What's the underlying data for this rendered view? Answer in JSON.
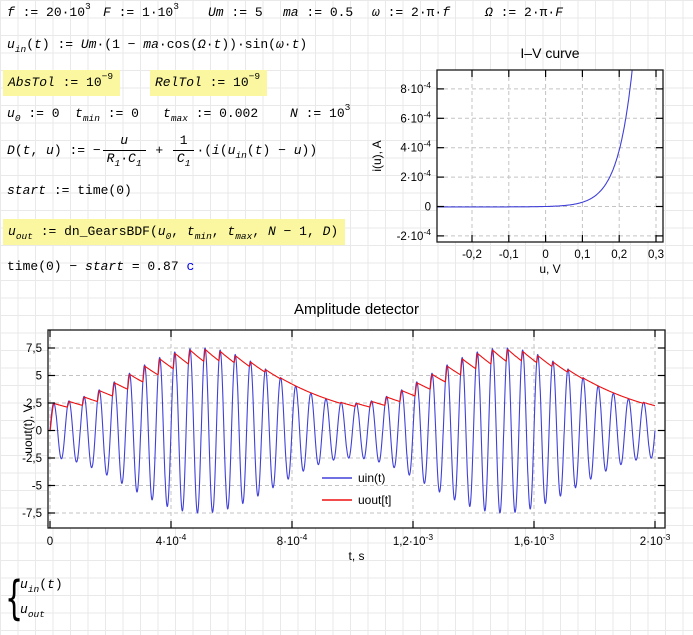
{
  "worksheet": {
    "highlight_color": "#faf7a0",
    "unit_color": "#0000e8",
    "formulas": {
      "def_f": [
        {
          "k": "v",
          "t": "f"
        },
        {
          "k": "r",
          "t": " := 20·10"
        },
        {
          "k": "p",
          "t": "3"
        }
      ],
      "def_F": [
        {
          "k": "v",
          "t": "F"
        },
        {
          "k": "r",
          "t": " := 1·10"
        },
        {
          "k": "p",
          "t": "3"
        }
      ],
      "def_Um": [
        {
          "k": "v",
          "t": "Um"
        },
        {
          "k": "r",
          "t": " := 5"
        }
      ],
      "def_ma": [
        {
          "k": "v",
          "t": "ma"
        },
        {
          "k": "r",
          "t": " := 0.5"
        }
      ],
      "def_omega": [
        {
          "k": "v",
          "t": "ω"
        },
        {
          "k": "r",
          "t": " := 2·π·"
        },
        {
          "k": "v",
          "t": "f"
        }
      ],
      "def_Omega": [
        {
          "k": "v",
          "t": "Ω"
        },
        {
          "k": "r",
          "t": " := 2·π·"
        },
        {
          "k": "v",
          "t": "F"
        }
      ],
      "def_uin": [
        {
          "k": "v",
          "t": "u"
        },
        {
          "k": "b",
          "t": "in"
        },
        {
          "k": "r",
          "t": "("
        },
        {
          "k": "v",
          "t": "t"
        },
        {
          "k": "r",
          "t": ") := "
        },
        {
          "k": "v",
          "t": "Um"
        },
        {
          "k": "r",
          "t": "·(1 − "
        },
        {
          "k": "v",
          "t": "ma"
        },
        {
          "k": "r",
          "t": "·cos("
        },
        {
          "k": "v",
          "t": "Ω"
        },
        {
          "k": "r",
          "t": "·"
        },
        {
          "k": "v",
          "t": "t"
        },
        {
          "k": "r",
          "t": "))·sin("
        },
        {
          "k": "v",
          "t": "ω"
        },
        {
          "k": "r",
          "t": "·"
        },
        {
          "k": "v",
          "t": "t"
        },
        {
          "k": "r",
          "t": ")"
        }
      ],
      "def_abstol": [
        {
          "k": "v",
          "t": "AbsTol"
        },
        {
          "k": "r",
          "t": " := 10"
        },
        {
          "k": "p",
          "t": "−9"
        }
      ],
      "def_reltol": [
        {
          "k": "v",
          "t": "RelTol"
        },
        {
          "k": "r",
          "t": " := 10"
        },
        {
          "k": "p",
          "t": "−9"
        }
      ],
      "def_u0": [
        {
          "k": "v",
          "t": "u"
        },
        {
          "k": "b",
          "t": "0"
        },
        {
          "k": "r",
          "t": " := 0"
        }
      ],
      "def_tmin": [
        {
          "k": "v",
          "t": "t"
        },
        {
          "k": "b",
          "t": "min"
        },
        {
          "k": "r",
          "t": " := 0"
        }
      ],
      "def_tmax": [
        {
          "k": "v",
          "t": "t"
        },
        {
          "k": "b",
          "t": "max"
        },
        {
          "k": "r",
          "t": " := 0.002"
        }
      ],
      "def_N": [
        {
          "k": "v",
          "t": "N"
        },
        {
          "k": "r",
          "t": " := 10"
        },
        {
          "k": "p",
          "t": "3"
        }
      ],
      "def_D": [
        {
          "k": "v",
          "t": "D"
        },
        {
          "k": "r",
          "t": "("
        },
        {
          "k": "v",
          "t": "t"
        },
        {
          "k": "r",
          "t": ", "
        },
        {
          "k": "v",
          "t": "u"
        },
        {
          "k": "r",
          "t": ") := −"
        },
        {
          "k": "f",
          "n": [
            {
              "k": "v",
              "t": "u"
            }
          ],
          "d": [
            {
              "k": "v",
              "t": "R"
            },
            {
              "k": "b",
              "t": "1"
            },
            {
              "k": "r",
              "t": "·"
            },
            {
              "k": "v",
              "t": "C"
            },
            {
              "k": "b",
              "t": "1"
            }
          ]
        },
        {
          "k": "r",
          "t": " + "
        },
        {
          "k": "f",
          "n": [
            {
              "k": "r",
              "t": "1"
            }
          ],
          "d": [
            {
              "k": "v",
              "t": "C"
            },
            {
              "k": "b",
              "t": "1"
            }
          ]
        },
        {
          "k": "r",
          "t": "·(",
          "": ""
        },
        {
          "k": "v",
          "t": "i"
        },
        {
          "k": "r",
          "t": "("
        },
        {
          "k": "v",
          "t": "u"
        },
        {
          "k": "b",
          "t": "in"
        },
        {
          "k": "r",
          "t": "("
        },
        {
          "k": "v",
          "t": "t"
        },
        {
          "k": "r",
          "t": ") − "
        },
        {
          "k": "v",
          "t": "u"
        },
        {
          "k": "r",
          "t": "))"
        }
      ],
      "def_start": [
        {
          "k": "v",
          "t": "start"
        },
        {
          "k": "r",
          "t": " := time(0)"
        }
      ],
      "def_uout": [
        {
          "k": "v",
          "t": "u"
        },
        {
          "k": "b",
          "t": "out"
        },
        {
          "k": "r",
          "t": " := dn_GearsBDF("
        },
        {
          "k": "v",
          "t": "u"
        },
        {
          "k": "b",
          "t": "0"
        },
        {
          "k": "r",
          "t": ", "
        },
        {
          "k": "v",
          "t": "t"
        },
        {
          "k": "b",
          "t": "min"
        },
        {
          "k": "r",
          "t": ", "
        },
        {
          "k": "v",
          "t": "t"
        },
        {
          "k": "b",
          "t": "max"
        },
        {
          "k": "r",
          "t": ", "
        },
        {
          "k": "v",
          "t": "N"
        },
        {
          "k": "r",
          "t": " − 1, "
        },
        {
          "k": "v",
          "t": "D"
        },
        {
          "k": "r",
          "t": ")"
        }
      ],
      "eval_time": [
        {
          "k": "r",
          "t": "time(0) − "
        },
        {
          "k": "v",
          "t": "start"
        },
        {
          "k": "r",
          "t": " = 0.87 "
        },
        {
          "k": "u",
          "t": "c"
        }
      ],
      "trace_uin": [
        {
          "k": "v",
          "t": "u"
        },
        {
          "k": "b",
          "t": "in"
        },
        {
          "k": "r",
          "t": "("
        },
        {
          "k": "v",
          "t": "t"
        },
        {
          "k": "r",
          "t": ")"
        }
      ],
      "trace_uout": [
        {
          "k": "v",
          "t": "u"
        },
        {
          "k": "b",
          "t": "out"
        }
      ],
      "brace_glyph": "{"
    }
  },
  "chart_data": [
    {
      "id": "iv",
      "type": "line",
      "title": "I–V curve",
      "xlabel": "u, V",
      "ylabel": "i(u), A",
      "xlim": [
        -0.295,
        0.319
      ],
      "ylim": [
        -0.000242,
        0.000929
      ],
      "x_ticks": [
        -0.2,
        -0.1,
        0,
        0.1,
        0.2,
        0.3
      ],
      "x_tick_labels": [
        "-0,2",
        "-0,1",
        "0",
        "0,1",
        "0,2",
        "0,3"
      ],
      "y_ticks": [
        0.0008,
        0.0006,
        0.0004,
        0.0002,
        0,
        -0.0002
      ],
      "y_tick_labels": [
        "8·10^-4",
        "6·10^-4",
        "4·10^-4",
        "2·10^-4",
        "0",
        "-2·10^-4"
      ],
      "grid": true,
      "frame": true,
      "series": [
        {
          "name": "i(u)",
          "color": "#4040d8",
          "model": "diode_exponential",
          "Is": 2.6e-06,
          "VT": 0.04
        }
      ]
    },
    {
      "id": "amp",
      "type": "line",
      "title": "Amplitude detector",
      "xlabel": "t, s",
      "ylabel": "uout(t), V",
      "xlim": [
        0,
        0.002033
      ],
      "ylim": [
        -8.86,
        9.14
      ],
      "x_ticks": [
        0,
        0.0004,
        0.0008,
        0.0012,
        0.0016,
        0.002
      ],
      "x_tick_labels": [
        "0",
        "4·10^-4",
        "8·10^-4",
        "1,2·10^-3",
        "1,6·10^-3",
        "2·10^-3"
      ],
      "y_ticks": [
        7.5,
        5,
        2.5,
        0,
        -2.5,
        -5,
        -7.5
      ],
      "y_tick_labels": [
        "7,5",
        "5",
        "2,5",
        "0",
        "-2,5",
        "-5",
        "-7,5"
      ],
      "grid": true,
      "frame": true,
      "legend": {
        "position": "center",
        "entries": [
          {
            "label": "uin(t)",
            "color": "#4040d8"
          },
          {
            "label": "uout[t]",
            "color": "#ee1010"
          }
        ]
      },
      "series": [
        {
          "name": "uin(t)",
          "color": "#4040d8",
          "model": "am_wave",
          "Um": 5,
          "ma": 0.5,
          "f": 20000,
          "F": 1000,
          "t_range": [
            0,
            0.002
          ]
        },
        {
          "name": "uout[t]",
          "color": "#ee1010",
          "model": "peak_detector_sim",
          "source": "uin(t)",
          "tau_discharge": 0.0003,
          "t_range": [
            0,
            0.002
          ]
        }
      ]
    }
  ]
}
